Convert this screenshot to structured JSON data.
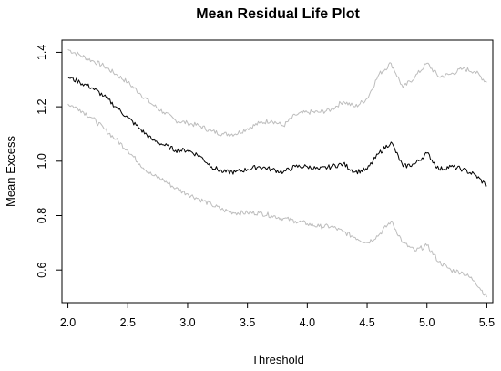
{
  "chart_data": {
    "type": "line",
    "title": "Mean Residual Life Plot",
    "xlabel": "Threshold",
    "ylabel": "Mean Excess",
    "xlim": [
      1.95,
      5.55
    ],
    "ylim": [
      0.48,
      1.445
    ],
    "xticks": [
      "2.0",
      "2.5",
      "3.0",
      "3.5",
      "4.0",
      "4.5",
      "5.0",
      "5.5"
    ],
    "yticks": [
      "0.6",
      "0.8",
      "1.0",
      "1.2",
      "1.4"
    ],
    "grid": false,
    "legend": "none",
    "x": [
      2.0,
      2.1,
      2.2,
      2.3,
      2.4,
      2.5,
      2.6,
      2.7,
      2.8,
      2.9,
      3.0,
      3.1,
      3.2,
      3.3,
      3.4,
      3.5,
      3.6,
      3.7,
      3.8,
      3.9,
      4.0,
      4.1,
      4.2,
      4.3,
      4.4,
      4.5,
      4.6,
      4.7,
      4.8,
      4.9,
      5.0,
      5.1,
      5.2,
      5.3,
      5.4,
      5.5
    ],
    "series": [
      {
        "role": "mean-excess",
        "color": "#000000",
        "values": [
          1.31,
          1.29,
          1.27,
          1.24,
          1.2,
          1.16,
          1.12,
          1.08,
          1.06,
          1.04,
          1.04,
          1.02,
          0.98,
          0.96,
          0.96,
          0.97,
          0.98,
          0.97,
          0.96,
          0.98,
          0.98,
          0.97,
          0.98,
          0.99,
          0.96,
          0.97,
          1.03,
          1.07,
          0.98,
          0.99,
          1.03,
          0.97,
          0.98,
          0.97,
          0.95,
          0.91
        ]
      },
      {
        "role": "upper-confidence-band",
        "color": "#bdbdbd",
        "values": [
          1.41,
          1.39,
          1.37,
          1.35,
          1.32,
          1.29,
          1.25,
          1.21,
          1.18,
          1.15,
          1.14,
          1.13,
          1.11,
          1.1,
          1.1,
          1.12,
          1.14,
          1.15,
          1.13,
          1.17,
          1.18,
          1.18,
          1.19,
          1.22,
          1.2,
          1.23,
          1.32,
          1.36,
          1.27,
          1.31,
          1.36,
          1.31,
          1.32,
          1.34,
          1.33,
          1.29
        ]
      },
      {
        "role": "lower-confidence-band",
        "color": "#bdbdbd",
        "values": [
          1.21,
          1.19,
          1.16,
          1.12,
          1.08,
          1.04,
          0.99,
          0.95,
          0.93,
          0.9,
          0.88,
          0.86,
          0.84,
          0.82,
          0.81,
          0.81,
          0.81,
          0.8,
          0.79,
          0.78,
          0.77,
          0.76,
          0.76,
          0.74,
          0.72,
          0.7,
          0.73,
          0.78,
          0.7,
          0.67,
          0.69,
          0.63,
          0.6,
          0.59,
          0.56,
          0.5
        ]
      }
    ]
  }
}
